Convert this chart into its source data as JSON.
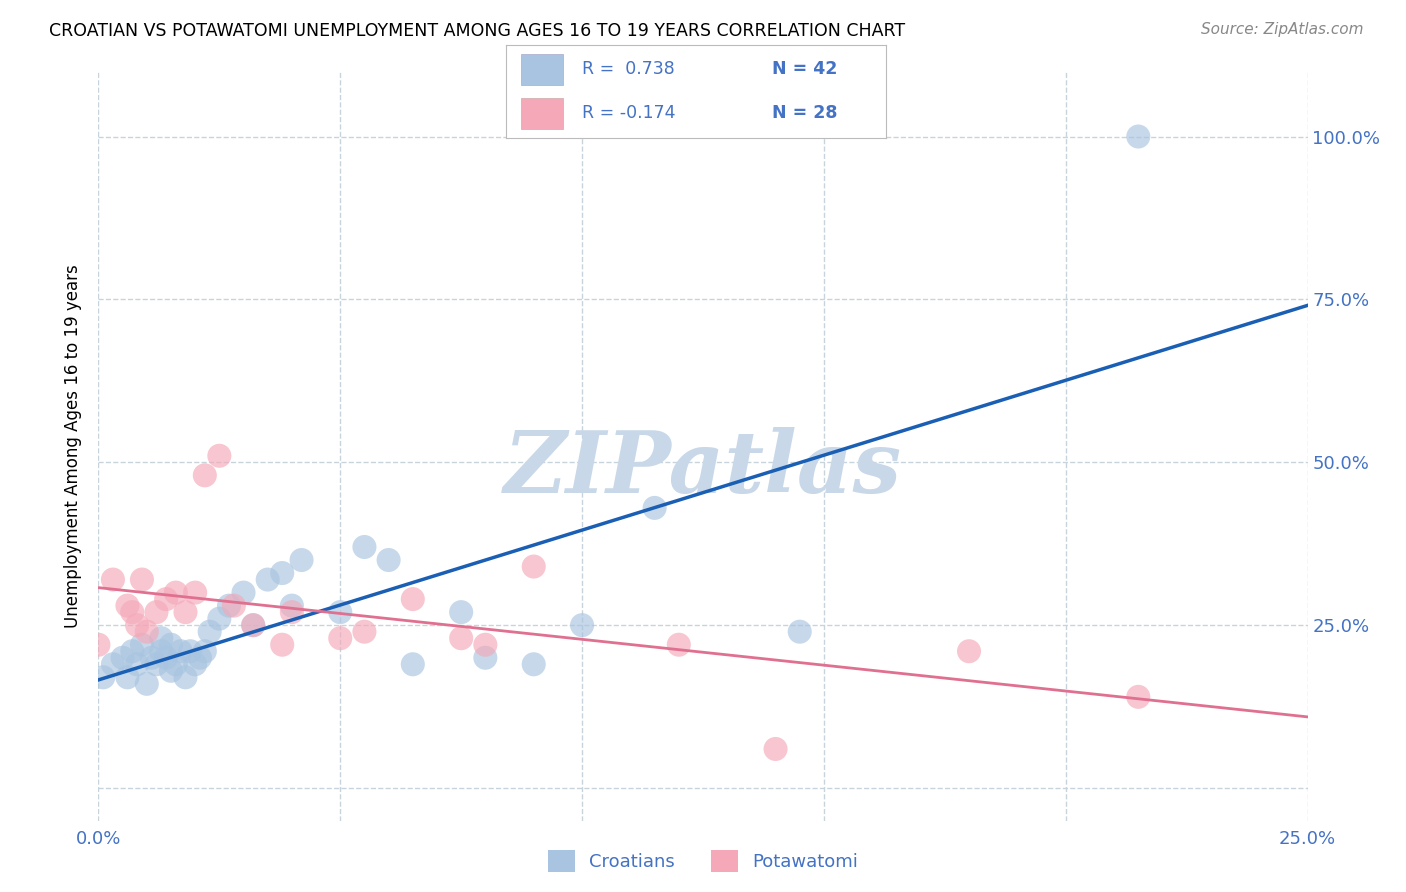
{
  "title": "CROATIAN VS POTAWATOMI UNEMPLOYMENT AMONG AGES 16 TO 19 YEARS CORRELATION CHART",
  "source": "Source: ZipAtlas.com",
  "ylabel": "Unemployment Among Ages 16 to 19 years",
  "xlim": [
    0.0,
    0.25
  ],
  "ylim": [
    -0.05,
    1.1
  ],
  "xticks": [
    0.0,
    0.05,
    0.1,
    0.15,
    0.2,
    0.25
  ],
  "xtick_labels": [
    "0.0%",
    "",
    "",
    "",
    "",
    "25.0%"
  ],
  "ytick_right_vals": [
    0.0,
    0.25,
    0.5,
    0.75,
    1.0
  ],
  "ytick_right_labels": [
    "",
    "25.0%",
    "50.0%",
    "75.0%",
    "100.0%"
  ],
  "croatian_color": "#a8c4e0",
  "potawatomi_color": "#f4a8b8",
  "croatian_line_color": "#1a5fb4",
  "potawatomi_line_color": "#e07090",
  "legend_r_croatian": "R =  0.738",
  "legend_n_croatian": "N = 42",
  "legend_r_potawatomi": "R = -0.174",
  "legend_n_potawatomi": "N = 28",
  "watermark": "ZIPatlas",
  "watermark_color": "#c8d8e8",
  "croatian_x": [
    0.001,
    0.003,
    0.005,
    0.006,
    0.007,
    0.008,
    0.009,
    0.01,
    0.011,
    0.012,
    0.013,
    0.013,
    0.014,
    0.015,
    0.015,
    0.016,
    0.017,
    0.018,
    0.019,
    0.02,
    0.021,
    0.022,
    0.023,
    0.025,
    0.027,
    0.03,
    0.032,
    0.035,
    0.038,
    0.04,
    0.042,
    0.05,
    0.055,
    0.06,
    0.065,
    0.075,
    0.08,
    0.09,
    0.1,
    0.115,
    0.145,
    0.215
  ],
  "croatian_y": [
    0.17,
    0.19,
    0.2,
    0.17,
    0.21,
    0.19,
    0.22,
    0.16,
    0.2,
    0.19,
    0.21,
    0.23,
    0.2,
    0.18,
    0.22,
    0.19,
    0.21,
    0.17,
    0.21,
    0.19,
    0.2,
    0.21,
    0.24,
    0.26,
    0.28,
    0.3,
    0.25,
    0.32,
    0.33,
    0.28,
    0.35,
    0.27,
    0.37,
    0.35,
    0.19,
    0.27,
    0.2,
    0.19,
    0.25,
    0.43,
    0.24,
    1.0
  ],
  "potawatomi_x": [
    0.0,
    0.003,
    0.006,
    0.007,
    0.008,
    0.009,
    0.01,
    0.012,
    0.014,
    0.016,
    0.018,
    0.02,
    0.022,
    0.025,
    0.028,
    0.032,
    0.038,
    0.04,
    0.05,
    0.055,
    0.065,
    0.075,
    0.08,
    0.09,
    0.12,
    0.14,
    0.18,
    0.215
  ],
  "potawatomi_y": [
    0.22,
    0.32,
    0.28,
    0.27,
    0.25,
    0.32,
    0.24,
    0.27,
    0.29,
    0.3,
    0.27,
    0.3,
    0.48,
    0.51,
    0.28,
    0.25,
    0.22,
    0.27,
    0.23,
    0.24,
    0.29,
    0.23,
    0.22,
    0.34,
    0.22,
    0.06,
    0.21,
    0.14
  ],
  "background_color": "#ffffff",
  "grid_color": "#c8d4dc",
  "tick_color": "#4472c4",
  "legend_box_color": "#e8e8e8"
}
